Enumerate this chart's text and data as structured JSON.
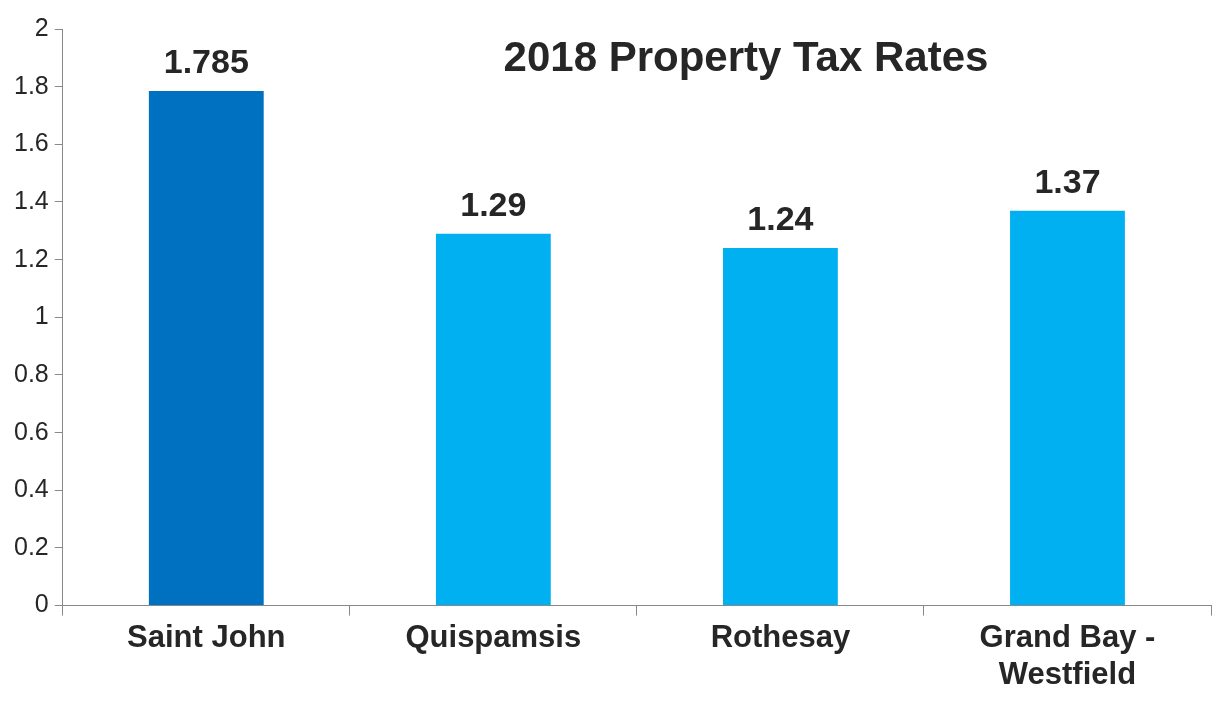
{
  "chart_data": {
    "type": "bar",
    "title": "2018 Property Tax Rates",
    "categories": [
      "Saint John",
      "Quispamsis",
      "Rothesay",
      "Grand Bay - Westfield"
    ],
    "values": [
      1.785,
      1.29,
      1.24,
      1.37
    ],
    "colors": [
      "#0070c0",
      "#00b0f0",
      "#00b0f0",
      "#00b0f0"
    ],
    "ylim": [
      0,
      2
    ],
    "yticks": [
      0,
      0.2,
      0.4,
      0.6,
      0.8,
      1,
      1.2,
      1.4,
      1.6,
      1.8,
      2
    ],
    "grid": false,
    "legend": false,
    "data_labels": true
  }
}
